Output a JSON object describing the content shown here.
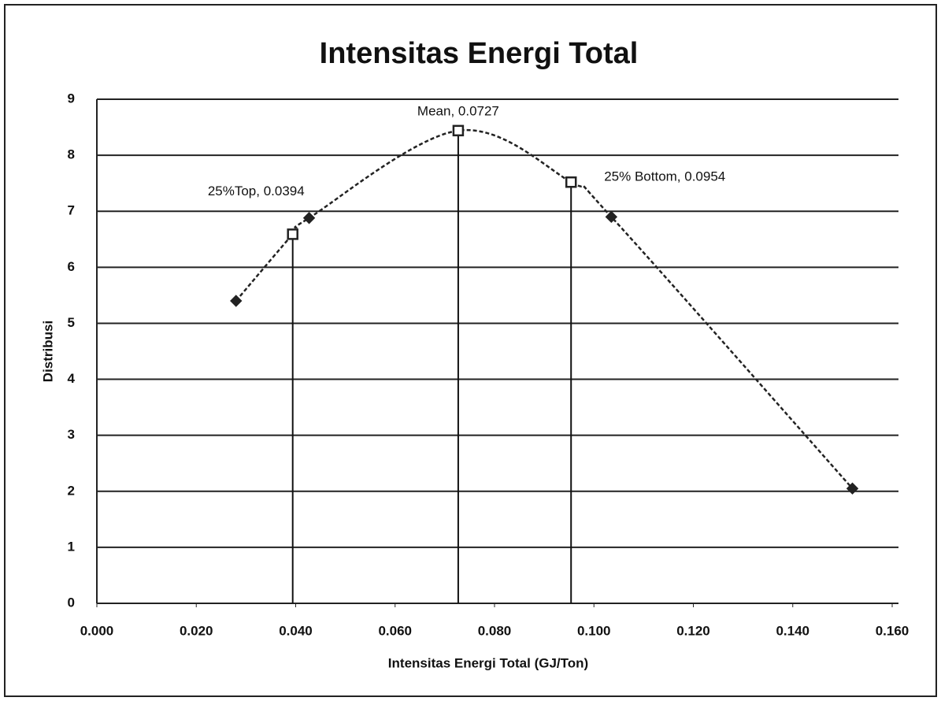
{
  "chart_data": {
    "type": "scatter",
    "title": "Intensitas Energi Total",
    "x_label": "Intensitas Energi Total (GJ/Ton)",
    "y_label": "Distribusi",
    "series": [
      {
        "color": "#222222",
        "x": [
          0.028,
          0.0394,
          0.0427,
          0.0727,
          0.0954,
          0.1035,
          0.152
        ],
        "values": [
          5.4,
          6.59,
          6.88,
          8.44,
          7.52,
          6.9,
          2.05
        ],
        "value_labels": [
          null,
          "25%Top, 0.0394",
          null,
          "Mean, 0.0727",
          "25% Bottom, 0.0954",
          null,
          null
        ]
      }
    ],
    "drop_lines": true,
    "xlim": [
      0,
      0.16
    ],
    "xticks": [
      {
        "value": 0,
        "label": "0.000"
      },
      {
        "value": 0.02,
        "label": "0.020"
      },
      {
        "value": 0.04,
        "label": "0.040"
      },
      {
        "value": 0.06,
        "label": "0.060"
      },
      {
        "value": 0.08,
        "label": "0.080"
      },
      {
        "value": 0.1,
        "label": "0.100"
      },
      {
        "value": 0.12,
        "label": "0.120"
      },
      {
        "value": 0.14,
        "label": "0.140"
      },
      {
        "value": 0.16,
        "label": "0.160"
      }
    ],
    "ylim": [
      0,
      9
    ],
    "yticks": [
      0,
      1,
      2,
      3,
      4,
      5,
      6,
      7,
      8,
      9
    ],
    "grid": true
  }
}
